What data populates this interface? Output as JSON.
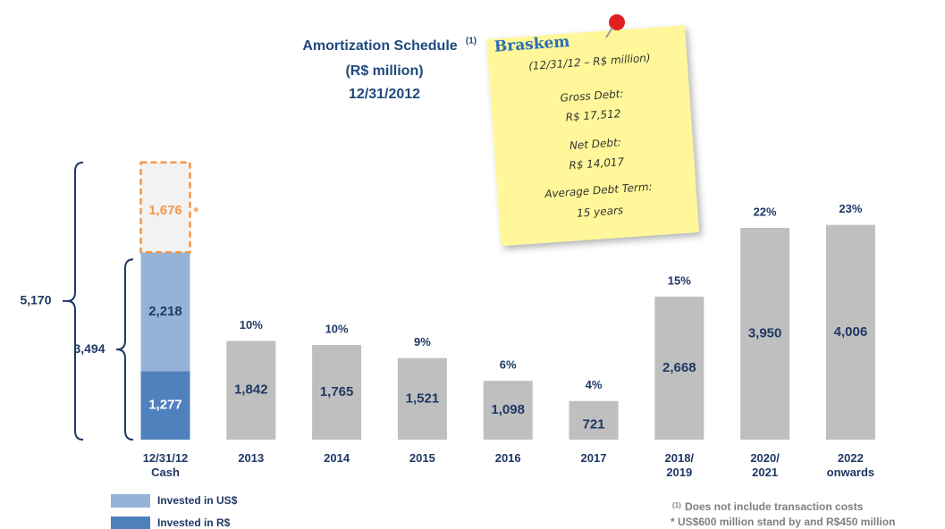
{
  "chart_data": {
    "type": "bar",
    "title": "Amortization Schedule",
    "title_note": "(1)",
    "subtitle": "(R$ million)",
    "date": "12/31/2012",
    "categories": [
      "12/31/12\nCash",
      "2013",
      "2014",
      "2015",
      "2016",
      "2017",
      "2018/\n2019",
      "2020/\n2021",
      "2022\nonwards"
    ],
    "series": [
      {
        "name": "Invested in R$",
        "color": "#4f81bd",
        "values": [
          1277,
          null,
          null,
          null,
          null,
          null,
          null,
          null,
          null
        ],
        "value_labels": [
          "1,277",
          null,
          null,
          null,
          null,
          null,
          null,
          null,
          null
        ]
      },
      {
        "name": "Invested in US$",
        "color": "#95b3d7",
        "values": [
          2218,
          null,
          null,
          null,
          null,
          null,
          null,
          null,
          null
        ],
        "value_labels": [
          "2,218",
          null,
          null,
          null,
          null,
          null,
          null,
          null,
          null
        ]
      }
    ],
    "debt": {
      "color": "#bfbfbf",
      "values": [
        null,
        1842,
        1765,
        1521,
        1098,
        721,
        2668,
        3950,
        4006
      ],
      "value_labels": [
        null,
        "1,842",
        "1,765",
        "1,521",
        "1,098",
        "721",
        "2,668",
        "3,950",
        "4,006"
      ],
      "shares": [
        null,
        10,
        10,
        9,
        6,
        4,
        15,
        22,
        23
      ],
      "share_labels": [
        null,
        "10%",
        "10%",
        "9%",
        "6%",
        "4%",
        "15%",
        "22%",
        "23%"
      ]
    },
    "stand_by": {
      "value": 1676,
      "value_label": "1,676",
      "marker": "*",
      "color": "#f79646"
    },
    "totals": [
      {
        "value": 5170,
        "label": "5,170"
      },
      {
        "value": 3494,
        "label": "3,494"
      }
    ],
    "footnotes": [
      {
        "marker": "(1)",
        "text": "Does not include transaction costs"
      },
      {
        "text": "* US$600 million stand by and R$450 million"
      }
    ],
    "note": {
      "logo": "Braskem",
      "lines": [
        "(12/31/12 – R$ million)",
        "Gross Debt:",
        "R$ 17,512",
        "Net Debt:",
        "R$ 14,017",
        "Average Debt Term:",
        "15 years"
      ]
    }
  }
}
